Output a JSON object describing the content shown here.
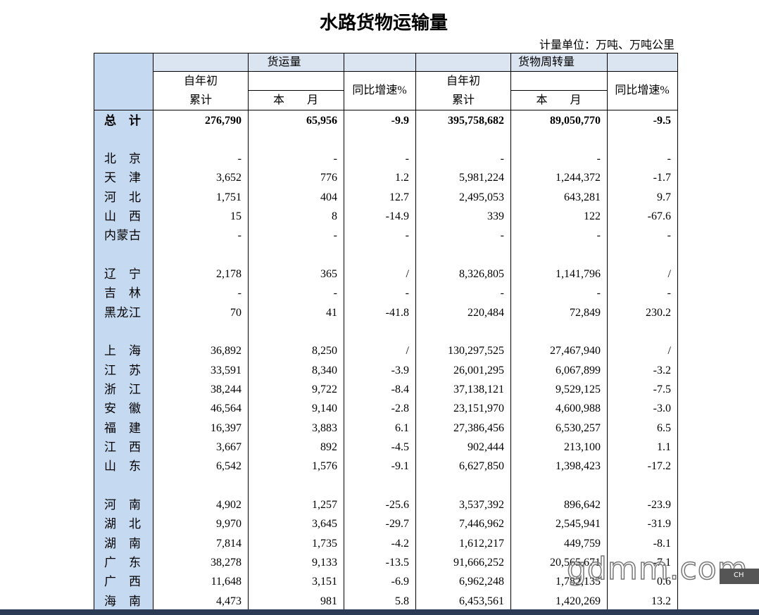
{
  "title": "水路货物运输量",
  "unit": "计量单位：万吨、万吨公里",
  "header": {
    "columns": [
      {
        "group": "货运量",
        "ytd": "自年初",
        "cum": "累计",
        "month": "本　　月",
        "yoy": "同比增速%"
      },
      {
        "group": "货物周转量",
        "ytd": "自年初",
        "cum": "累计",
        "month": "本　　月",
        "yoy": "同比增速%"
      }
    ]
  },
  "total": {
    "label": "总计",
    "values": [
      "276,790",
      "65,956",
      "-9.9",
      "395,758,682",
      "89,050,770",
      "-9.5"
    ]
  },
  "groups": [
    [
      {
        "label": "北京",
        "values": [
          "-",
          "-",
          "-",
          "-",
          "-",
          "-"
        ]
      },
      {
        "label": "天津",
        "values": [
          "3,652",
          "776",
          "1.2",
          "5,981,224",
          "1,244,372",
          "-1.7"
        ]
      },
      {
        "label": "河北",
        "values": [
          "1,751",
          "404",
          "12.7",
          "2,495,053",
          "643,281",
          "9.7"
        ]
      },
      {
        "label": "山西",
        "values": [
          "15",
          "8",
          "-14.9",
          "339",
          "122",
          "-67.6"
        ]
      },
      {
        "label": "内蒙古",
        "values": [
          "-",
          "-",
          "-",
          "-",
          "-",
          "-"
        ]
      }
    ],
    [
      {
        "label": "辽宁",
        "values": [
          "2,178",
          "365",
          "/",
          "8,326,805",
          "1,141,796",
          "/"
        ]
      },
      {
        "label": "吉林",
        "values": [
          "-",
          "-",
          "-",
          "-",
          "-",
          "-"
        ]
      },
      {
        "label": "黑龙江",
        "values": [
          "70",
          "41",
          "-41.8",
          "220,484",
          "72,849",
          "230.2"
        ]
      }
    ],
    [
      {
        "label": "上海",
        "values": [
          "36,892",
          "8,250",
          "/",
          "130,297,525",
          "27,467,940",
          "/"
        ]
      },
      {
        "label": "江苏",
        "values": [
          "33,591",
          "8,340",
          "-3.9",
          "26,001,295",
          "6,067,899",
          "-3.2"
        ]
      },
      {
        "label": "浙江",
        "values": [
          "38,244",
          "9,722",
          "-8.4",
          "37,138,121",
          "9,529,125",
          "-7.5"
        ]
      },
      {
        "label": "安徽",
        "values": [
          "46,564",
          "9,140",
          "-2.8",
          "23,151,970",
          "4,600,988",
          "-3.0"
        ]
      },
      {
        "label": "福建",
        "values": [
          "16,397",
          "3,883",
          "6.1",
          "27,386,456",
          "6,530,257",
          "6.5"
        ]
      },
      {
        "label": "江西",
        "values": [
          "3,667",
          "892",
          "-4.5",
          "902,444",
          "213,100",
          "1.1"
        ]
      },
      {
        "label": "山东",
        "values": [
          "6,542",
          "1,576",
          "-9.1",
          "6,627,850",
          "1,398,423",
          "-17.2"
        ]
      }
    ],
    [
      {
        "label": "河南",
        "values": [
          "4,902",
          "1,257",
          "-25.6",
          "3,537,392",
          "896,642",
          "-23.9"
        ]
      },
      {
        "label": "湖北",
        "values": [
          "9,970",
          "3,645",
          "-29.7",
          "7,446,962",
          "2,545,941",
          "-31.9"
        ]
      },
      {
        "label": "湖南",
        "values": [
          "7,814",
          "1,735",
          "-4.2",
          "1,612,217",
          "449,759",
          "-8.1"
        ]
      },
      {
        "label": "广东",
        "values": [
          "38,278",
          "9,133",
          "-13.5",
          "91,666,252",
          "20,565,671",
          "-7.1"
        ]
      },
      {
        "label": "广西",
        "values": [
          "11,648",
          "3,151",
          "-6.9",
          "6,962,248",
          "1,782,135",
          "0.6"
        ]
      },
      {
        "label": "海南",
        "values": [
          "4,473",
          "981",
          "5.8",
          "6,453,561",
          "1,420,269",
          "13.2"
        ]
      }
    ]
  ],
  "watermark": "gdmm.com",
  "taskbar": "CH"
}
